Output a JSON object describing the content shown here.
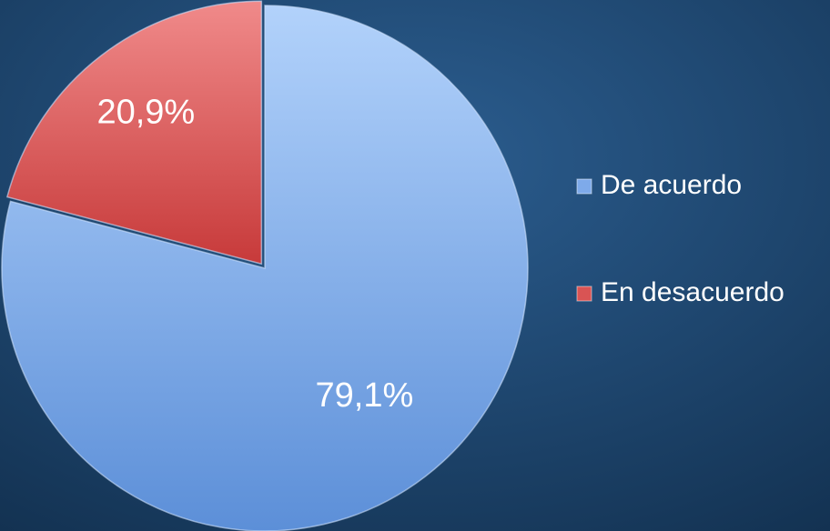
{
  "chart_data": {
    "type": "pie",
    "categories": [
      "De acuerdo",
      "En desacuerdo"
    ],
    "values": [
      79.1,
      20.9
    ],
    "value_labels": [
      "79,1%",
      "20,9%"
    ],
    "colors": [
      "#7eaaea",
      "#d95454"
    ],
    "legend": "right"
  }
}
